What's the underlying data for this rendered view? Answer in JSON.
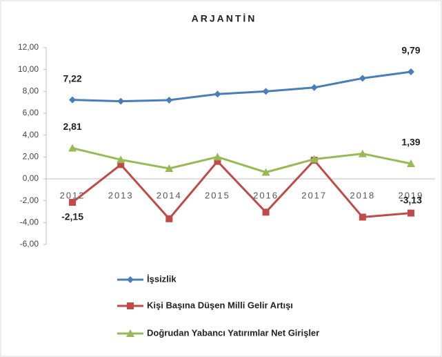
{
  "chart_data": {
    "type": "line",
    "title": "ARJANTİN",
    "categories": [
      "2012",
      "2013",
      "2014",
      "2015",
      "2016",
      "2017",
      "2018",
      "2019"
    ],
    "series": [
      {
        "name": "İşsizlik",
        "color": "#4a7ebb",
        "marker": "diamond",
        "values": [
          7.22,
          7.1,
          7.2,
          7.75,
          8.0,
          8.35,
          9.2,
          9.79
        ],
        "value_labels": [
          "7,22",
          null,
          null,
          null,
          null,
          null,
          null,
          "9,79"
        ]
      },
      {
        "name": "Kişi Başına Düşen Milli Gelir Artışı",
        "color": "#be4b48",
        "marker": "square",
        "values": [
          -2.15,
          1.3,
          -3.65,
          1.6,
          -3.05,
          1.7,
          -3.5,
          -3.13
        ],
        "value_labels": [
          "-2,15",
          null,
          null,
          null,
          null,
          null,
          null,
          "-3,13"
        ]
      },
      {
        "name": "Doğrudan Yabancı Yatırımlar Net Girişler",
        "color": "#98b954",
        "marker": "triangle",
        "values": [
          2.81,
          1.75,
          0.95,
          2.0,
          0.6,
          1.8,
          2.3,
          1.39
        ],
        "value_labels": [
          "2,81",
          null,
          null,
          null,
          null,
          null,
          null,
          "1,39"
        ]
      }
    ],
    "ylim": [
      -6,
      12
    ],
    "yticks": [
      {
        "value": -6,
        "label": "-6,00"
      },
      {
        "value": -4,
        "label": "-4,00"
      },
      {
        "value": -2,
        "label": "-2,00"
      },
      {
        "value": 0,
        "label": "0,00"
      },
      {
        "value": 2,
        "label": "2,00"
      },
      {
        "value": 4,
        "label": "4,00"
      },
      {
        "value": 6,
        "label": "6,00"
      },
      {
        "value": 8,
        "label": "8,00"
      },
      {
        "value": 10,
        "label": "10,00"
      },
      {
        "value": 12,
        "label": "12,00"
      }
    ],
    "grid": false,
    "legend": "bottom"
  }
}
